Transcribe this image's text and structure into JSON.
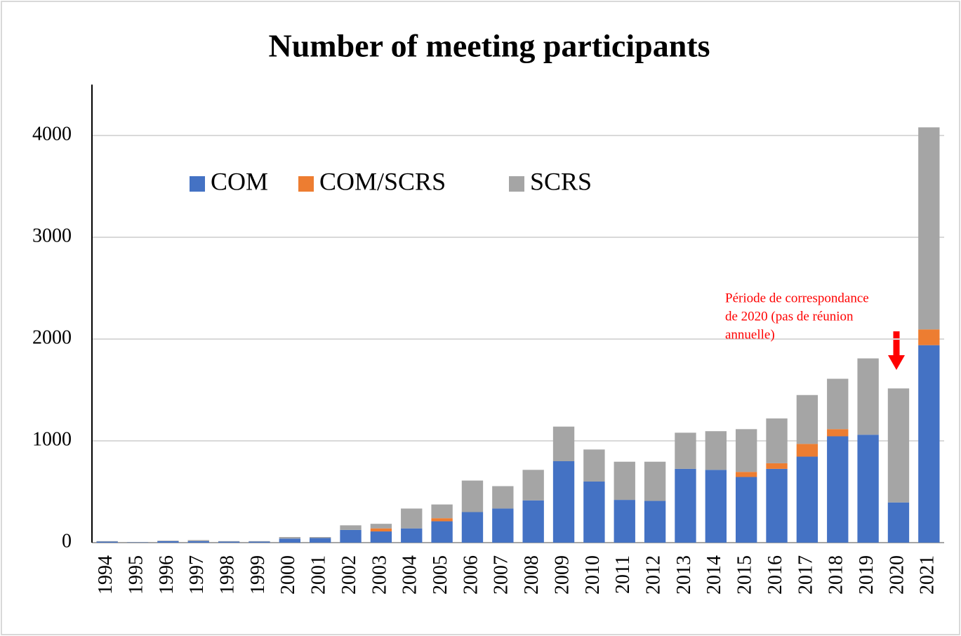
{
  "chart_data": {
    "type": "stacked_bar",
    "title": "Number of meeting participants",
    "categories": [
      "1994",
      "1995",
      "1996",
      "1997",
      "1998",
      "1999",
      "2000",
      "2001",
      "2002",
      "2003",
      "2004",
      "2005",
      "2006",
      "2007",
      "2008",
      "2009",
      "2010",
      "2011",
      "2012",
      "2013",
      "2014",
      "2015",
      "2016",
      "2017",
      "2018",
      "2019",
      "2020",
      "2021"
    ],
    "series": [
      {
        "name": "COM",
        "color": "#4472c4",
        "values": [
          10,
          3,
          15,
          15,
          10,
          10,
          40,
          45,
          125,
          110,
          140,
          210,
          300,
          335,
          415,
          800,
          600,
          420,
          410,
          725,
          715,
          645,
          725,
          845,
          1045,
          1060,
          395,
          1940
        ]
      },
      {
        "name": "COM/SCRS",
        "color": "#ed7d31",
        "values": [
          0,
          0,
          0,
          0,
          0,
          0,
          0,
          0,
          0,
          30,
          0,
          30,
          0,
          0,
          0,
          0,
          0,
          0,
          0,
          0,
          0,
          50,
          55,
          125,
          70,
          0,
          0,
          155
        ]
      },
      {
        "name": "SCRS",
        "color": "#a5a5a5",
        "values": [
          5,
          2,
          5,
          10,
          5,
          5,
          15,
          10,
          45,
          45,
          195,
          135,
          310,
          220,
          300,
          340,
          315,
          375,
          385,
          355,
          380,
          420,
          440,
          480,
          495,
          750,
          1120,
          1985
        ]
      }
    ],
    "ylim": [
      0,
      4500
    ],
    "yticks": [
      0,
      1000,
      2000,
      3000,
      4000
    ],
    "grid": true,
    "legend": "upper left",
    "annotation": {
      "lines": [
        "Période de correspondance",
        "de 2020 (pas de réunion",
        "annuelle)"
      ],
      "color": "#ff0000"
    }
  }
}
